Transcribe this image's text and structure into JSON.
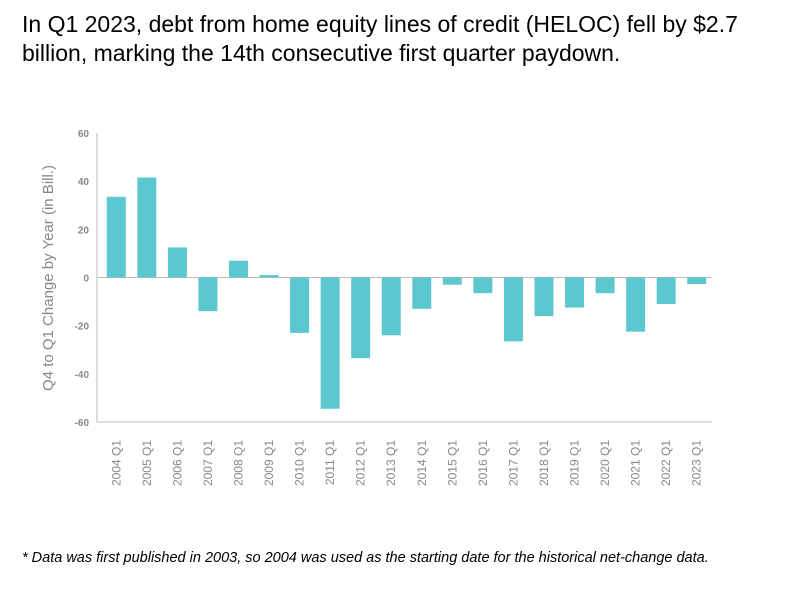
{
  "title": "In Q1 2023, debt from home equity lines of credit (HELOC) fell by $2.7 billion, marking the 14th consecutive first quarter paydown.",
  "footnote": "* Data was first published in 2003, so 2004 was used as the starting date for the historical net-change data.",
  "colors": {
    "bar": "#5bc8cf",
    "axis": "#bbbbbb",
    "tick_text": "#888888"
  },
  "chart_data": {
    "type": "bar",
    "ylabel": "Q4 to Q1 Change by Year (in Bill.)",
    "xlabel": "",
    "ylim": [
      -60,
      60
    ],
    "yticks": [
      60,
      40,
      20,
      0,
      -20,
      -40,
      -60
    ],
    "ytick_labels": [
      "60",
      "40",
      "20",
      "0",
      "-20",
      "-40",
      "-60"
    ],
    "grid": false,
    "categories": [
      "2004 Q1",
      "2005 Q1",
      "2006 Q1",
      "2007 Q1",
      "2008 Q1",
      "2009 Q1",
      "2010 Q1",
      "2011 Q1",
      "2012 Q1",
      "2013 Q1",
      "2014 Q1",
      "2015 Q1",
      "2016 Q1",
      "2017 Q1",
      "2018 Q1",
      "2019 Q1",
      "2020 Q1",
      "2021 Q1",
      "2022 Q1",
      "2023 Q1"
    ],
    "values": [
      33.5,
      41.5,
      12.5,
      -14,
      7,
      1,
      -23,
      -54.5,
      -33.5,
      -24,
      -13,
      -3,
      -6.5,
      -26.5,
      -16,
      -12.5,
      -6.5,
      -22.5,
      -11,
      -2.7
    ]
  }
}
